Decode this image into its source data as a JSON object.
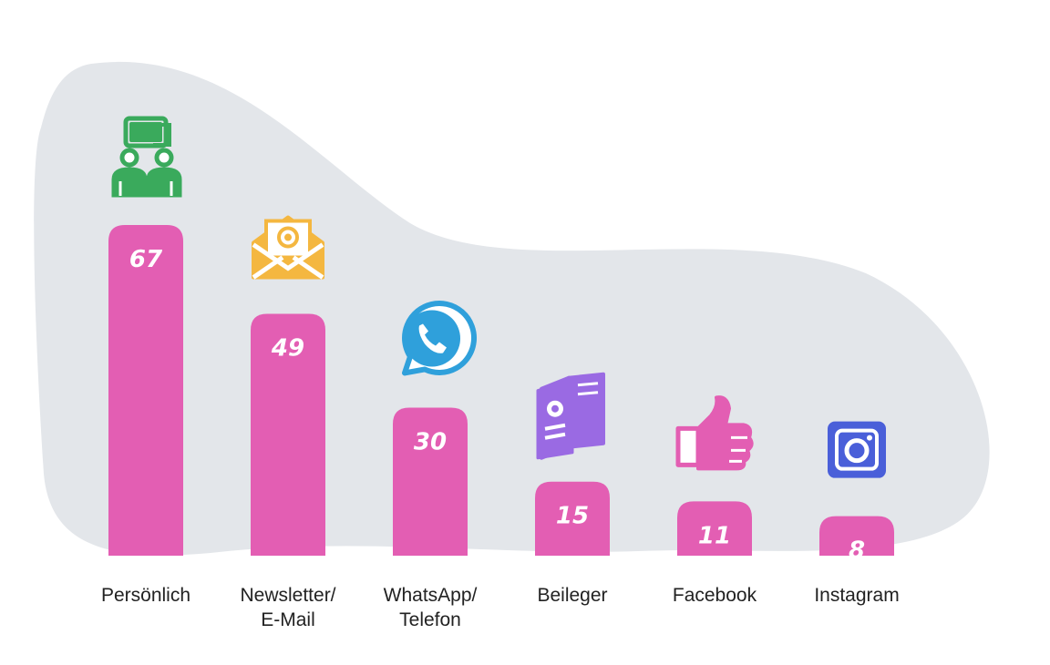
{
  "chart_data": {
    "type": "bar",
    "categories": [
      [
        "Persönlich"
      ],
      [
        "Newsletter/",
        "E-Mail"
      ],
      [
        "WhatsApp/",
        "Telefon"
      ],
      [
        "Beileger"
      ],
      [
        "Facebook"
      ],
      [
        "Instagram"
      ]
    ],
    "values": [
      67,
      49,
      30,
      15,
      11,
      8
    ],
    "value_labels": [
      "67",
      "49",
      "30",
      "15",
      "11",
      "8"
    ],
    "icons": [
      "people-chat-icon",
      "email-at-icon",
      "whatsapp-phone-icon",
      "leaflet-icon",
      "thumbs-up-icon",
      "instagram-icon"
    ],
    "title": "",
    "xlabel": "",
    "ylabel": "",
    "ylim": [
      0,
      67
    ],
    "grid": false,
    "legend": "none",
    "colors": {
      "bar": "#e35eb3",
      "blob": "#e3e6ea",
      "icon_green": "#3aaa5c",
      "icon_orange": "#f4b740",
      "icon_blue": "#2fa0db",
      "icon_purple": "#9a6ae3",
      "icon_pink": "#e35eb3",
      "icon_indigo": "#4a5fd9"
    }
  }
}
